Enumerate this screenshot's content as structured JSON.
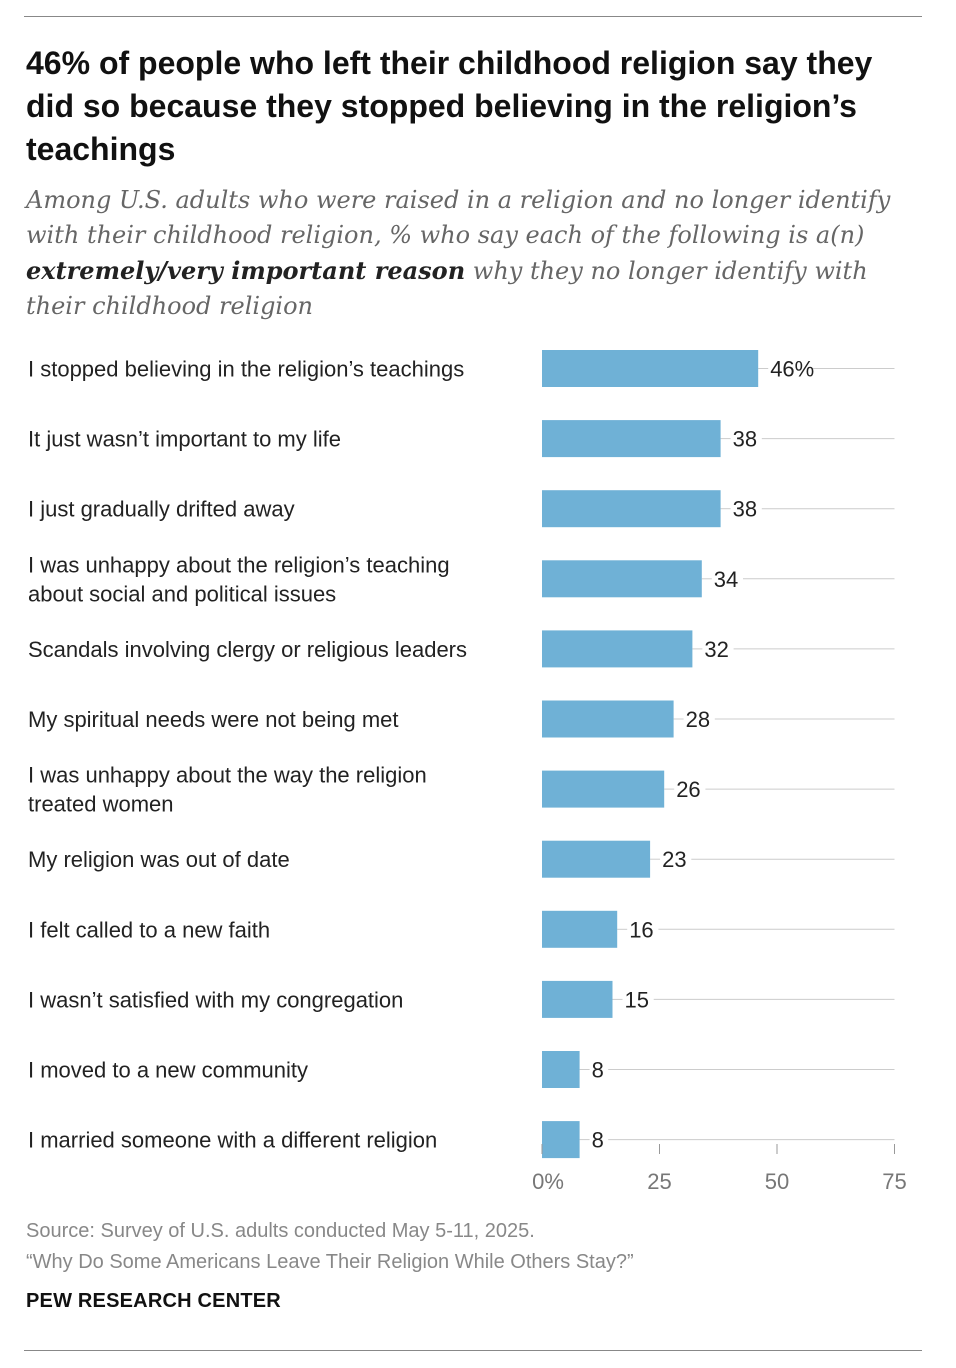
{
  "header": {
    "title": "46% of people who left their childhood religion say they did so because they stopped believing in the religion’s teachings",
    "subtitle_part1": "Among U.S. adults who were raised in a religion and no longer identify with their childhood religion, % who say each of the following is a(n) ",
    "subtitle_emphasis": "extremely/very important reason",
    "subtitle_part2": " why they no longer identify with their childhood religion"
  },
  "chart_data": {
    "type": "bar",
    "orientation": "horizontal",
    "categories": [
      "I stopped believing in the religion’s teachings",
      "It just wasn’t important to my life",
      "I just gradually drifted away",
      "I was unhappy about the religion’s teaching about social and political issues",
      "Scandals involving clergy or religious leaders",
      "My spiritual needs were not being met",
      "I was unhappy about the way the religion treated women",
      "My religion was out of date",
      "I felt called to a new faith",
      "I wasn’t satisfied with my congregation",
      "I moved to a new community",
      "I married someone with a different religion"
    ],
    "category_lines": [
      [
        "I stopped believing in the religion’s teachings"
      ],
      [
        "It just wasn’t important to my life"
      ],
      [
        "I just gradually drifted away"
      ],
      [
        "I was unhappy about the religion’s teaching",
        "about social and political issues"
      ],
      [
        "Scandals involving clergy or religious leaders"
      ],
      [
        "My spiritual needs were not being met"
      ],
      [
        "I was unhappy about the way the religion",
        "treated women"
      ],
      [
        "My religion was out of date"
      ],
      [
        "I felt called to a new faith"
      ],
      [
        "I wasn’t satisfied with my congregation"
      ],
      [
        "I moved to a new community"
      ],
      [
        "I married someone with a different religion"
      ]
    ],
    "values": [
      46,
      38,
      38,
      34,
      32,
      28,
      26,
      23,
      16,
      15,
      8,
      8
    ],
    "value_labels": [
      "46%",
      "38",
      "38",
      "34",
      "32",
      "28",
      "26",
      "23",
      "16",
      "15",
      "8",
      "8"
    ],
    "xlim": [
      0,
      75
    ],
    "xticks": [
      0,
      25,
      50,
      75
    ],
    "xtick_labels": [
      "0%",
      "25",
      "50",
      "75"
    ],
    "bar_color": "#6fb1d6",
    "gridline_color": "#cccccc",
    "grid": true
  },
  "footer": {
    "source": "Source: Survey of U.S. adults conducted May 5-11, 2025.",
    "report": "“Why Do Some Americans Leave Their Religion While Others Stay?”",
    "brand": "PEW RESEARCH CENTER"
  }
}
